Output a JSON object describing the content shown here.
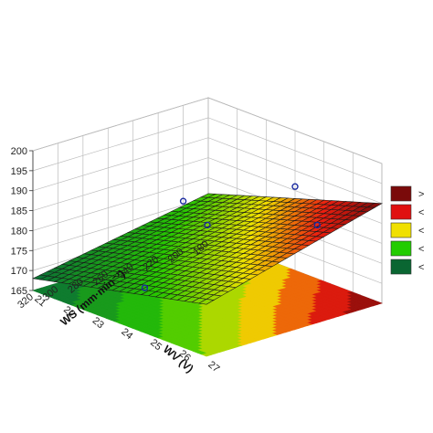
{
  "chart_data": {
    "type": "surface-3d",
    "title": "",
    "x_axis": {
      "label": "WV (V)",
      "ticks": [
        21,
        22,
        23,
        24,
        25,
        26,
        27
      ],
      "range": [
        21,
        27
      ]
    },
    "y_axis": {
      "label": "WS (mm·min⁻¹)",
      "ticks": [
        180,
        200,
        220,
        240,
        260,
        280,
        300,
        320
      ],
      "range": [
        180,
        320
      ]
    },
    "z_axis": {
      "label": "",
      "ticks": [
        165,
        170,
        175,
        180,
        185,
        190,
        195,
        200
      ],
      "range": [
        165,
        200
      ]
    },
    "surface_corners": {
      "wv21_ws180": 176,
      "wv27_ws180": 190,
      "wv21_ws320": 168,
      "wv27_ws320": 178
    },
    "design_points": [
      {
        "wv": 21,
        "ws": 200,
        "z": 176
      },
      {
        "wv": 24,
        "ws": 180,
        "z": 186
      },
      {
        "wv": 24,
        "ws": 250,
        "z": 183
      },
      {
        "wv": 26.5,
        "ws": 220,
        "z": 187
      },
      {
        "wv": 24,
        "ws": 300,
        "z": 172
      }
    ],
    "legend": {
      "position": "right",
      "entries": [
        {
          "label": ">",
          "color": "#7a0a0a"
        },
        {
          "label": "<",
          "color": "#e01010"
        },
        {
          "label": "<",
          "color": "#f0e000"
        },
        {
          "label": "<",
          "color": "#22cc00"
        },
        {
          "label": "<",
          "color": "#0a6632"
        }
      ]
    },
    "grid": true
  }
}
